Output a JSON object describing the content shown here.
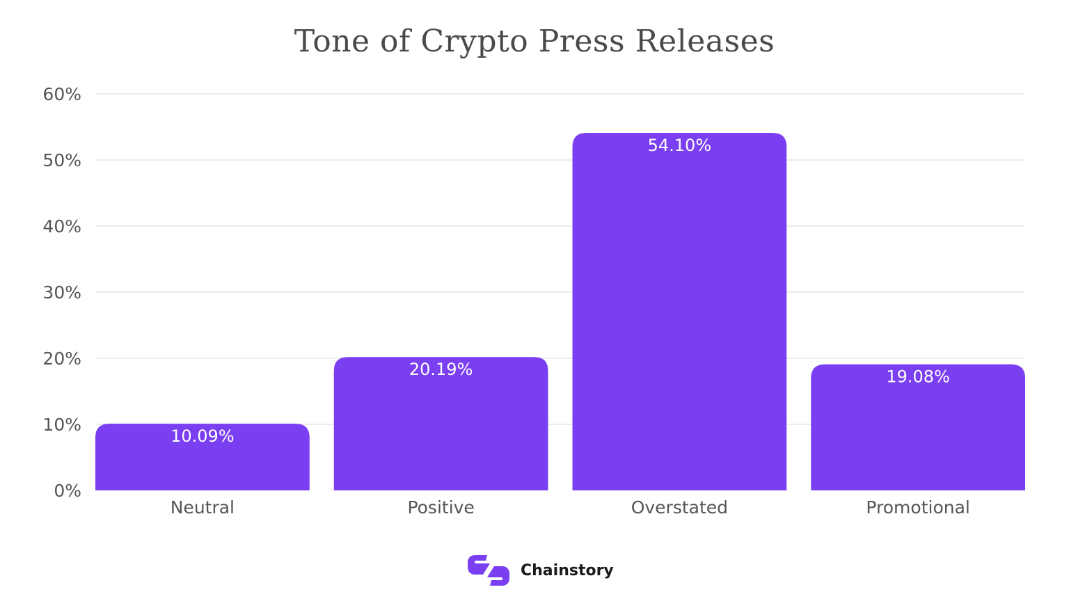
{
  "chart_data": {
    "type": "bar",
    "title": "Tone of Crypto Press Releases",
    "categories": [
      "Neutral",
      "Positive",
      "Overstated",
      "Promotional"
    ],
    "values": [
      10.09,
      20.19,
      54.1,
      19.08
    ],
    "value_labels": [
      "10.09%",
      "20.19%",
      "54.10%",
      "19.08%"
    ],
    "xlabel": "",
    "ylabel": "",
    "ylim": [
      0,
      60
    ],
    "yticks": [
      0,
      10,
      20,
      30,
      40,
      50,
      60
    ],
    "ytick_labels": [
      "0%",
      "10%",
      "20%",
      "30%",
      "40%",
      "50%",
      "60%"
    ],
    "grid": true,
    "bar_color": "#7b3ff2",
    "grid_color": "#e6e6e6"
  },
  "brand": {
    "name": "Chainstory",
    "logo_icon": "chainstory-logo-icon",
    "color": "#7b3ff2"
  }
}
